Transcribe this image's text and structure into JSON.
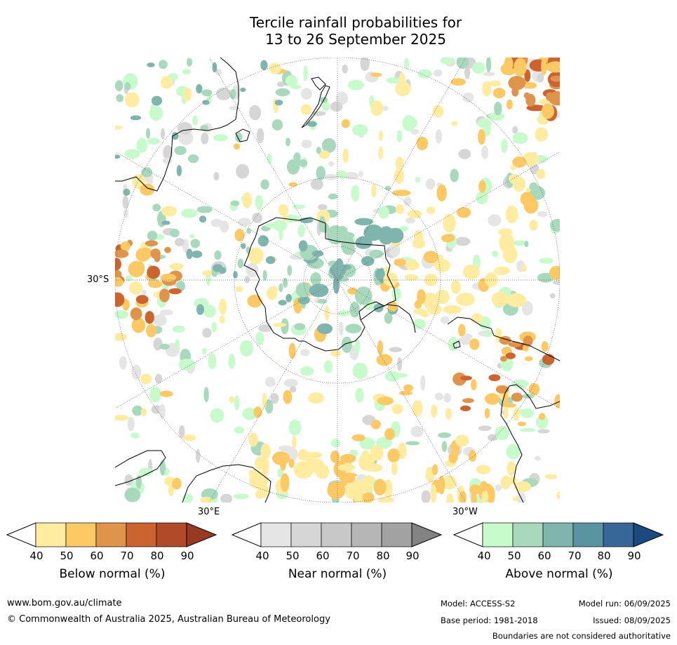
{
  "title_line1": "Tercile rainfall probabilities for",
  "title_line2": "13 to 26 September 2025",
  "map": {
    "lat_label": "30°S",
    "lon_labels": {
      "east": "30°E",
      "west": "30°W"
    },
    "colors": {
      "below_normal": [
        "#ffeca0",
        "#fdc964",
        "#e0934a",
        "#cc6430",
        "#b14a28",
        "#973a24"
      ],
      "near_normal": [
        "#e5e5e5",
        "#d6d6d6",
        "#c8c8c8",
        "#b6b6b6",
        "#a2a2a2",
        "#838383"
      ],
      "above_normal": [
        "#c8fbcc",
        "#a8d9bd",
        "#7fb5ad",
        "#5a94a0",
        "#376798",
        "#1a4a80"
      ]
    }
  },
  "colorbars": [
    {
      "id": "below",
      "label": "Below normal (%)",
      "ticks": [
        "40",
        "50",
        "60",
        "70",
        "80",
        "90"
      ],
      "colors": [
        "#ffeca0",
        "#fdc964",
        "#e0934a",
        "#cc6430",
        "#b14a28"
      ],
      "over_color": "#973a24"
    },
    {
      "id": "near",
      "label": "Near normal (%)",
      "ticks": [
        "40",
        "50",
        "60",
        "70",
        "80",
        "90"
      ],
      "colors": [
        "#e5e5e5",
        "#d6d6d6",
        "#c8c8c8",
        "#b6b6b6",
        "#a2a2a2"
      ],
      "over_color": "#838383"
    },
    {
      "id": "above",
      "label": "Above normal (%)",
      "ticks": [
        "40",
        "50",
        "60",
        "70",
        "80",
        "90"
      ],
      "colors": [
        "#c8fbcc",
        "#a8d9bd",
        "#7fb5ad",
        "#5a94a0",
        "#376798"
      ],
      "over_color": "#1a4a80"
    }
  ],
  "footer": {
    "url": "www.bom.gov.au/climate",
    "copyright": "© Commonwealth of Australia 2025, Australian Bureau of Meteorology",
    "model": "Model: ACCESS-S2",
    "model_run": "Model run: 06/09/2025",
    "base_period": "Base period: 1981-2018",
    "issued": "Issued: 08/09/2025",
    "disclaimer": "Boundaries are not considered authoritative"
  }
}
